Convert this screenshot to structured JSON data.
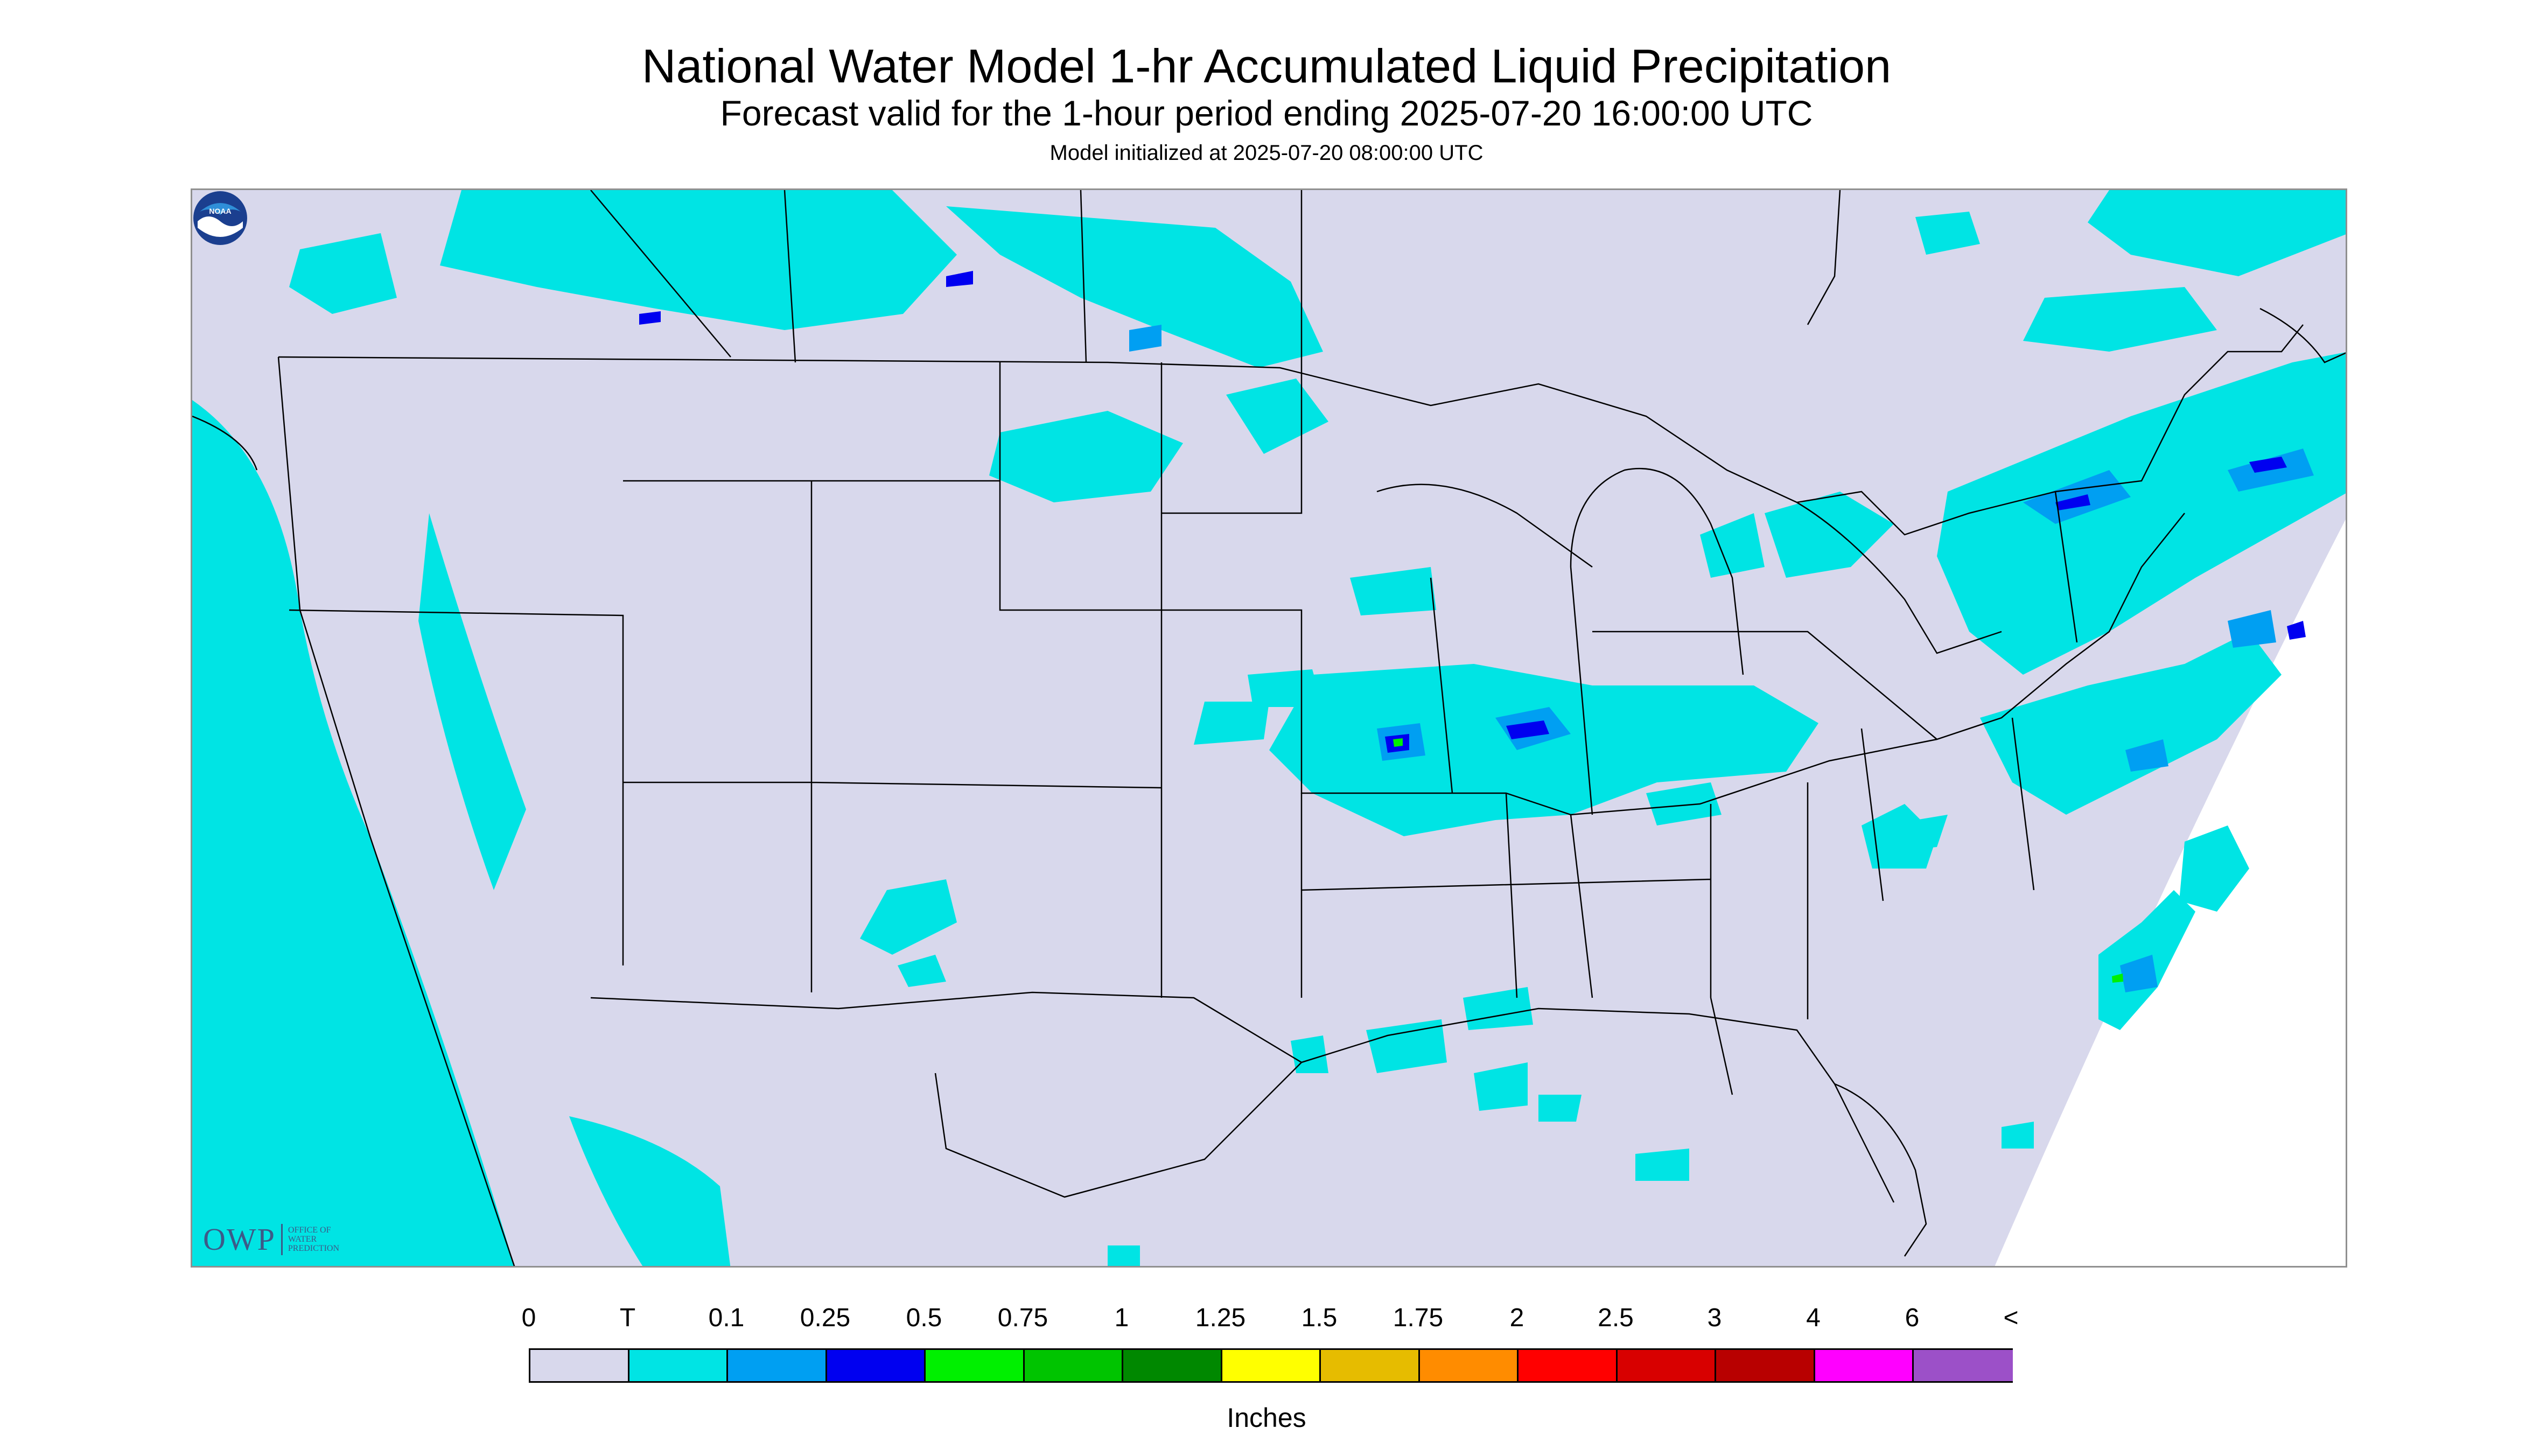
{
  "title": "National Water Model 1-hr Accumulated Liquid Precipitation",
  "subtitle": "Forecast valid for the 1-hour period ending 2025-07-20 16:00:00 UTC",
  "initialized": "Model initialized at 2025-07-20 08:00:00 UTC",
  "owp_logo": {
    "main": "OWP",
    "line1": "OFFICE OF",
    "line2": "WATER",
    "line3": "PREDICTION"
  },
  "noaa_logo": {
    "text": "NOAA"
  },
  "legend": {
    "units": "Inches",
    "labels": [
      "0",
      "T",
      "0.1",
      "0.25",
      "0.5",
      "0.75",
      "1",
      "1.25",
      "1.5",
      "1.75",
      "2",
      "2.5",
      "3",
      "4",
      "6",
      "<"
    ],
    "colors": [
      "#d8d8ec",
      "#00e4e4",
      "#009ff2",
      "#0000f0",
      "#00f000",
      "#00c400",
      "#008800",
      "#ffff00",
      "#e6bc00",
      "#ff8c00",
      "#ff0000",
      "#d80000",
      "#b80000",
      "#ff00ff",
      "#9c50c8"
    ]
  },
  "map_colors": {
    "land": "#d8d8ec",
    "trace": "#00e4e4",
    "light": "#009ff2",
    "moderate": "#0000f0",
    "heavy": "#00f000",
    "border": "#000000"
  }
}
